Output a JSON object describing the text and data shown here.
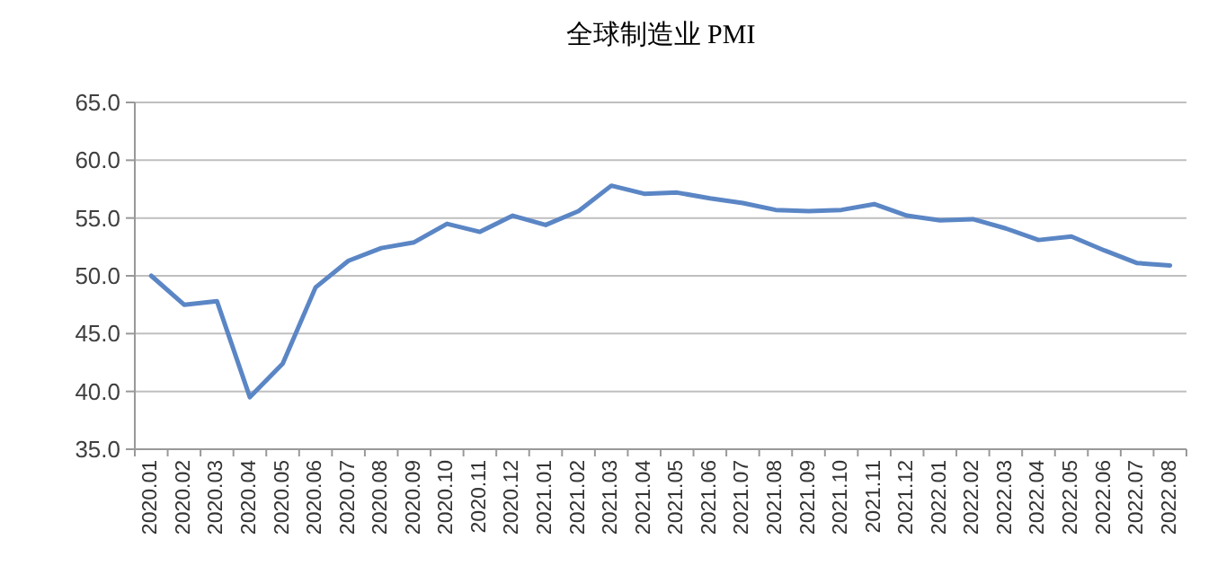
{
  "chart_data": {
    "type": "line",
    "title": "全球制造业 PMI",
    "categories": [
      "2020.01",
      "2020.02",
      "2020.03",
      "2020.04",
      "2020.05",
      "2020.06",
      "2020.07",
      "2020.08",
      "2020.09",
      "2020.10",
      "2020.11",
      "2020.12",
      "2021.01",
      "2021.02",
      "2021.03",
      "2021.04",
      "2021.05",
      "2021.06",
      "2021.07",
      "2021.08",
      "2021.09",
      "2021.10",
      "2021.11",
      "2021.12",
      "2022.01",
      "2022.02",
      "2022.03",
      "2022.04",
      "2022.05",
      "2022.06",
      "2022.07",
      "2022.08"
    ],
    "series": [
      {
        "color": "#5b86c5",
        "values": [
          50.0,
          47.5,
          47.8,
          39.5,
          42.4,
          49.0,
          51.3,
          52.4,
          52.9,
          54.5,
          53.8,
          55.2,
          54.4,
          55.6,
          57.8,
          57.1,
          57.2,
          56.7,
          56.3,
          55.7,
          55.6,
          55.7,
          56.2,
          55.2,
          54.8,
          54.9,
          54.1,
          53.1,
          53.4,
          52.2,
          51.1,
          50.9
        ]
      }
    ],
    "ylim": [
      35,
      65
    ],
    "yticks": [
      {
        "value": 35,
        "label": "35.0"
      },
      {
        "value": 40,
        "label": "40.0"
      },
      {
        "value": 45,
        "label": "45.0"
      },
      {
        "value": 50,
        "label": "50.0"
      },
      {
        "value": 55,
        "label": "55.0"
      },
      {
        "value": 60,
        "label": "60.0"
      },
      {
        "value": 65,
        "label": "65.0"
      }
    ],
    "grid": "y"
  }
}
